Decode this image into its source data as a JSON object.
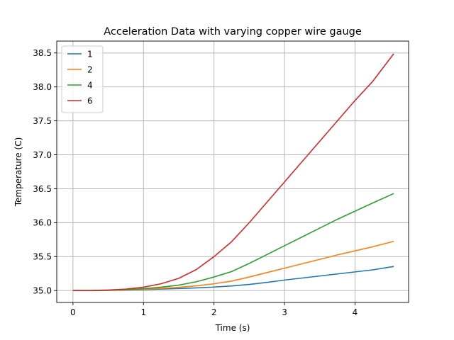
{
  "chart_data": {
    "type": "line",
    "title": "Acceleration Data with varying copper wire gauge",
    "xlabel": "Time (s)",
    "ylabel": "Temperature (C)",
    "xlim": [
      -0.23,
      4.76
    ],
    "ylim": [
      34.825,
      38.675
    ],
    "xticks": [
      0,
      1,
      2,
      3,
      4
    ],
    "xtick_labels": [
      "0",
      "1",
      "2",
      "3",
      "4"
    ],
    "yticks": [
      35.0,
      35.5,
      36.0,
      36.5,
      37.0,
      37.5,
      38.0,
      38.5
    ],
    "ytick_labels": [
      "35.0",
      "35.5",
      "36.0",
      "36.5",
      "37.0",
      "37.5",
      "38.0",
      "38.5"
    ],
    "grid": true,
    "legend": "upper-left",
    "x": [
      0,
      0.25,
      0.5,
      0.75,
      1.0,
      1.25,
      1.5,
      1.75,
      2.0,
      2.25,
      2.5,
      2.75,
      3.0,
      3.25,
      3.5,
      3.75,
      4.0,
      4.25,
      4.55
    ],
    "series": [
      {
        "name": "1",
        "color": "#1f77b4",
        "values": [
          35.0,
          35.0,
          35.003,
          35.008,
          35.015,
          35.022,
          35.03,
          35.04,
          35.052,
          35.068,
          35.09,
          35.12,
          35.155,
          35.185,
          35.215,
          35.245,
          35.275,
          35.305,
          35.355
        ]
      },
      {
        "name": "2",
        "color": "#ff7f0e",
        "values": [
          35.0,
          35.0,
          35.004,
          35.01,
          35.02,
          35.032,
          35.048,
          35.07,
          35.1,
          35.14,
          35.2,
          35.265,
          35.33,
          35.395,
          35.46,
          35.525,
          35.585,
          35.645,
          35.725
        ]
      },
      {
        "name": "4",
        "color": "#2ca02c",
        "values": [
          35.0,
          35.0,
          35.005,
          35.013,
          35.028,
          35.05,
          35.08,
          35.13,
          35.2,
          35.28,
          35.4,
          35.53,
          35.66,
          35.79,
          35.92,
          36.05,
          36.17,
          36.29,
          36.43
        ]
      },
      {
        "name": "6",
        "color": "#d62728",
        "values": [
          35.0,
          35.0,
          35.008,
          35.022,
          35.05,
          35.1,
          35.18,
          35.31,
          35.5,
          35.72,
          36.0,
          36.3,
          36.6,
          36.9,
          37.2,
          37.5,
          37.8,
          38.08,
          38.49
        ]
      }
    ]
  }
}
